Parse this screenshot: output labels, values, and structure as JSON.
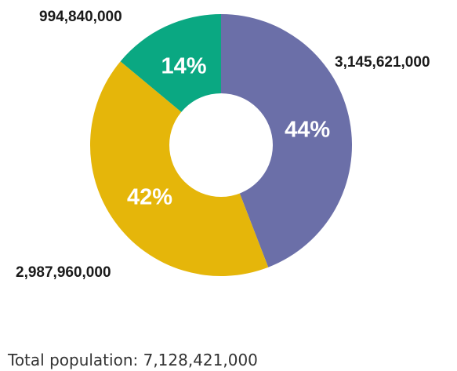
{
  "chart_data": {
    "type": "pie",
    "donut": true,
    "slices": [
      {
        "value": 3145621000,
        "value_label": "3,145,621,000",
        "percent_label": "44%",
        "color": "#6b6fa8"
      },
      {
        "value": 2987960000,
        "value_label": "2,987,960,000",
        "percent_label": "42%",
        "color": "#e5b60a"
      },
      {
        "value": 994840000,
        "value_label": "994,840,000",
        "percent_label": "14%",
        "color": "#0aa882"
      }
    ]
  },
  "footer": {
    "total_text": "Total population: 7,128,421,000"
  }
}
